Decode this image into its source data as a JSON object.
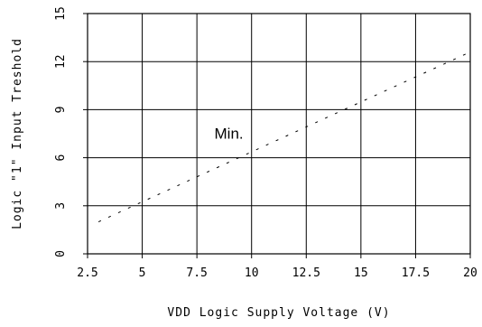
{
  "chart_data": {
    "type": "line",
    "title": "",
    "xlabel": "VDD Logic Supply Voltage (V)",
    "ylabel": "Logic \"1\" Input Treshold",
    "xlim": [
      2.5,
      20
    ],
    "ylim": [
      0,
      15
    ],
    "x_ticks": [
      2.5,
      5,
      7.5,
      10,
      12.5,
      15,
      17.5,
      20
    ],
    "y_ticks": [
      0,
      3,
      6,
      9,
      12,
      15
    ],
    "x_tick_labels": [
      "2.5",
      "5",
      "7.5",
      "10",
      "12.5",
      "15",
      "17.5",
      "20"
    ],
    "y_tick_labels": [
      "0",
      "3",
      "6",
      "9",
      "12",
      "15"
    ],
    "grid": true,
    "series": [
      {
        "name": "Min.",
        "line_style": "dashed",
        "color": "#000000",
        "x": [
          3,
          20
        ],
        "y": [
          2.0,
          12.6
        ]
      }
    ],
    "annotations": [
      {
        "text": "Min.",
        "x": 8.3,
        "y": 7.2
      }
    ]
  }
}
